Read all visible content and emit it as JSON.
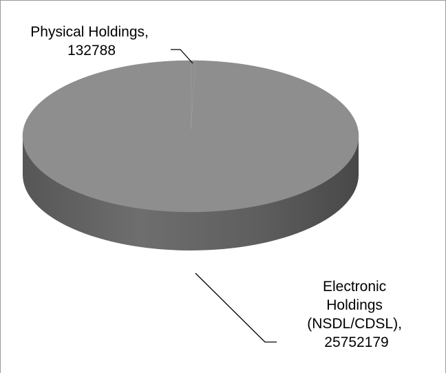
{
  "chart_data": {
    "type": "pie",
    "three_d": true,
    "slices": [
      {
        "label_lines": [
          "Physical Holdings,",
          "132788"
        ],
        "value": 132788
      },
      {
        "label_lines": [
          "Electronic",
          "Holdings",
          "(NSDL/CDSL),",
          "25752179"
        ],
        "value": 25752179
      }
    ],
    "colors": {
      "top": "#8e8e8e",
      "side": "#6c6c6c",
      "side_dark": "#4f4f4f",
      "leader": "#000000",
      "frame": "#9a9a9a"
    },
    "legend": "none"
  }
}
